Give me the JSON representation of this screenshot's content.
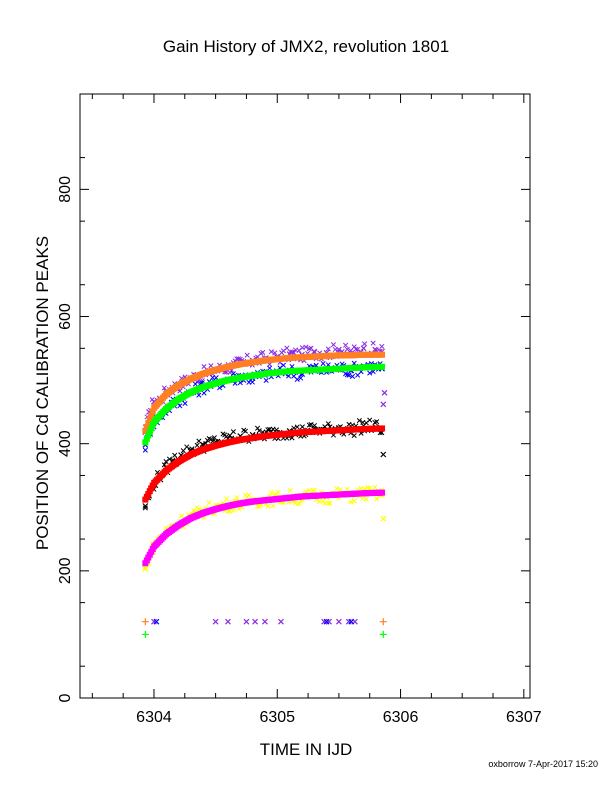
{
  "chart_data": {
    "type": "scatter",
    "title": "Gain History of JMX2, revolution 1801",
    "xlabel": "TIME IN IJD",
    "ylabel": "POSITION OF Cd CALIBRATION PEAKS",
    "xlim": [
      6303.4,
      6307.05
    ],
    "ylim": [
      0,
      950
    ],
    "x_ticks": [
      "6304",
      "6305",
      "6306",
      "6307"
    ],
    "y_ticks": [
      "0",
      "200",
      "400",
      "600",
      "800"
    ],
    "footer": "oxborrow  7-Apr-2017 15:20",
    "series": [
      {
        "color": "#8a2be2",
        "marker": "x",
        "role": "raw",
        "points": [
          [
            6303.93,
            418
          ],
          [
            6303.96,
            450
          ],
          [
            6304.0,
            466
          ],
          [
            6304.05,
            470
          ],
          [
            6304.1,
            482
          ],
          [
            6304.15,
            488
          ],
          [
            6304.22,
            494
          ],
          [
            6304.3,
            503
          ],
          [
            6304.4,
            510
          ],
          [
            6304.5,
            516
          ],
          [
            6304.6,
            520
          ],
          [
            6304.7,
            526
          ],
          [
            6304.8,
            531
          ],
          [
            6304.9,
            534
          ],
          [
            6305.0,
            536
          ],
          [
            6305.1,
            541
          ],
          [
            6305.2,
            540
          ],
          [
            6305.3,
            545
          ],
          [
            6305.4,
            543
          ],
          [
            6305.5,
            548
          ],
          [
            6305.6,
            542
          ],
          [
            6305.7,
            550
          ],
          [
            6305.8,
            547
          ],
          [
            6305.85,
            545
          ],
          [
            6305.86,
            462
          ],
          [
            6305.87,
            480
          ]
        ]
      },
      {
        "color": "#0000ff",
        "marker": "x",
        "role": "raw",
        "points": [
          [
            6303.93,
            398
          ],
          [
            6303.96,
            420
          ],
          [
            6304.0,
            435
          ],
          [
            6304.05,
            442
          ],
          [
            6304.1,
            455
          ],
          [
            6304.15,
            462
          ],
          [
            6304.22,
            470
          ],
          [
            6304.3,
            480
          ],
          [
            6304.4,
            490
          ],
          [
            6304.5,
            496
          ],
          [
            6304.6,
            501
          ],
          [
            6304.7,
            506
          ],
          [
            6304.8,
            503
          ],
          [
            6304.9,
            508
          ],
          [
            6305.0,
            512
          ],
          [
            6305.1,
            515
          ],
          [
            6305.2,
            510
          ],
          [
            6305.3,
            518
          ],
          [
            6305.4,
            516
          ],
          [
            6305.5,
            520
          ],
          [
            6305.6,
            515
          ],
          [
            6305.7,
            522
          ],
          [
            6305.8,
            520
          ],
          [
            6305.85,
            518
          ]
        ]
      },
      {
        "color": "#000000",
        "marker": "x",
        "role": "raw",
        "points": [
          [
            6303.93,
            302
          ],
          [
            6303.96,
            318
          ],
          [
            6304.0,
            338
          ],
          [
            6304.05,
            350
          ],
          [
            6304.1,
            362
          ],
          [
            6304.15,
            372
          ],
          [
            6304.22,
            382
          ],
          [
            6304.3,
            390
          ],
          [
            6304.4,
            398
          ],
          [
            6304.5,
            403
          ],
          [
            6304.6,
            408
          ],
          [
            6304.7,
            412
          ],
          [
            6304.8,
            414
          ],
          [
            6304.9,
            415
          ],
          [
            6305.0,
            417
          ],
          [
            6305.1,
            420
          ],
          [
            6305.2,
            418
          ],
          [
            6305.3,
            423
          ],
          [
            6305.4,
            421
          ],
          [
            6305.5,
            425
          ],
          [
            6305.6,
            422
          ],
          [
            6305.7,
            428
          ],
          [
            6305.8,
            426
          ],
          [
            6305.85,
            424
          ],
          [
            6305.86,
            383
          ]
        ]
      },
      {
        "color": "#ffff00",
        "marker": "x",
        "role": "raw",
        "points": [
          [
            6303.93,
            203
          ],
          [
            6303.96,
            222
          ],
          [
            6304.0,
            240
          ],
          [
            6304.05,
            252
          ],
          [
            6304.1,
            262
          ],
          [
            6304.15,
            270
          ],
          [
            6304.22,
            278
          ],
          [
            6304.3,
            286
          ],
          [
            6304.4,
            294
          ],
          [
            6304.5,
            300
          ],
          [
            6304.6,
            304
          ],
          [
            6304.7,
            308
          ],
          [
            6304.8,
            310
          ],
          [
            6304.9,
            312
          ],
          [
            6305.0,
            314
          ],
          [
            6305.1,
            316
          ],
          [
            6305.2,
            315
          ],
          [
            6305.3,
            318
          ],
          [
            6305.4,
            316
          ],
          [
            6305.5,
            320
          ],
          [
            6305.6,
            318
          ],
          [
            6305.7,
            322
          ],
          [
            6305.8,
            321
          ],
          [
            6305.85,
            319
          ],
          [
            6305.86,
            282
          ]
        ]
      },
      {
        "color": "#ff7f24",
        "marker": "fit",
        "points": [
          [
            6303.93,
            420
          ],
          [
            6304.0,
            456
          ],
          [
            6304.1,
            478
          ],
          [
            6304.2,
            492
          ],
          [
            6304.3,
            502
          ],
          [
            6304.4,
            510
          ],
          [
            6304.5,
            516
          ],
          [
            6304.6,
            521
          ],
          [
            6304.7,
            525
          ],
          [
            6304.8,
            528
          ],
          [
            6304.9,
            531
          ],
          [
            6305.0,
            533
          ],
          [
            6305.1,
            535
          ],
          [
            6305.2,
            536
          ],
          [
            6305.3,
            537
          ],
          [
            6305.4,
            538
          ],
          [
            6305.5,
            539
          ],
          [
            6305.6,
            539
          ],
          [
            6305.7,
            540
          ],
          [
            6305.85,
            540
          ]
        ]
      },
      {
        "color": "#00ff00",
        "marker": "fit",
        "points": [
          [
            6303.93,
            402
          ],
          [
            6304.0,
            434
          ],
          [
            6304.1,
            455
          ],
          [
            6304.2,
            470
          ],
          [
            6304.3,
            481
          ],
          [
            6304.4,
            489
          ],
          [
            6304.5,
            495
          ],
          [
            6304.6,
            500
          ],
          [
            6304.7,
            504
          ],
          [
            6304.8,
            507
          ],
          [
            6304.9,
            510
          ],
          [
            6305.0,
            512
          ],
          [
            6305.1,
            514
          ],
          [
            6305.2,
            515
          ],
          [
            6305.3,
            516
          ],
          [
            6305.4,
            517
          ],
          [
            6305.5,
            518
          ],
          [
            6305.6,
            519
          ],
          [
            6305.7,
            520
          ],
          [
            6305.85,
            521
          ]
        ]
      },
      {
        "color": "#ff0000",
        "marker": "fit",
        "points": [
          [
            6303.93,
            312
          ],
          [
            6304.0,
            338
          ],
          [
            6304.1,
            358
          ],
          [
            6304.2,
            372
          ],
          [
            6304.3,
            383
          ],
          [
            6304.4,
            391
          ],
          [
            6304.5,
            397
          ],
          [
            6304.6,
            402
          ],
          [
            6304.7,
            406
          ],
          [
            6304.8,
            409
          ],
          [
            6304.9,
            412
          ],
          [
            6305.0,
            414
          ],
          [
            6305.1,
            416
          ],
          [
            6305.2,
            418
          ],
          [
            6305.3,
            419
          ],
          [
            6305.4,
            420
          ],
          [
            6305.5,
            421
          ],
          [
            6305.6,
            422
          ],
          [
            6305.7,
            423
          ],
          [
            6305.85,
            424
          ]
        ]
      },
      {
        "color": "#ff00ff",
        "marker": "fit",
        "points": [
          [
            6303.93,
            212
          ],
          [
            6304.0,
            238
          ],
          [
            6304.1,
            258
          ],
          [
            6304.2,
            272
          ],
          [
            6304.3,
            283
          ],
          [
            6304.4,
            291
          ],
          [
            6304.5,
            297
          ],
          [
            6304.6,
            302
          ],
          [
            6304.7,
            306
          ],
          [
            6304.8,
            309
          ],
          [
            6304.9,
            311
          ],
          [
            6305.0,
            313
          ],
          [
            6305.1,
            315
          ],
          [
            6305.2,
            317
          ],
          [
            6305.3,
            318
          ],
          [
            6305.4,
            319
          ],
          [
            6305.5,
            320
          ],
          [
            6305.6,
            321
          ],
          [
            6305.7,
            322
          ],
          [
            6305.85,
            323
          ]
        ]
      },
      {
        "color": "#8a2be2",
        "marker": "x",
        "role": "flag",
        "points": [
          [
            6304.0,
            120
          ],
          [
            6304.5,
            120
          ],
          [
            6304.6,
            120
          ],
          [
            6304.75,
            120
          ],
          [
            6304.82,
            120
          ],
          [
            6304.9,
            120
          ],
          [
            6305.03,
            120
          ],
          [
            6305.38,
            120
          ],
          [
            6305.42,
            120
          ],
          [
            6305.5,
            120
          ],
          [
            6305.58,
            120
          ],
          [
            6305.63,
            120
          ]
        ]
      },
      {
        "color": "#0000ff",
        "marker": "x",
        "role": "flag",
        "points": [
          [
            6304.02,
            120
          ],
          [
            6305.4,
            120
          ],
          [
            6305.6,
            120
          ]
        ]
      },
      {
        "color": "#ff7f24",
        "marker": "+",
        "role": "flag",
        "points": [
          [
            6303.93,
            120
          ],
          [
            6305.86,
            120
          ]
        ]
      },
      {
        "color": "#00ff00",
        "marker": "+",
        "role": "flag",
        "points": [
          [
            6303.93,
            100
          ],
          [
            6305.86,
            100
          ]
        ]
      }
    ]
  }
}
